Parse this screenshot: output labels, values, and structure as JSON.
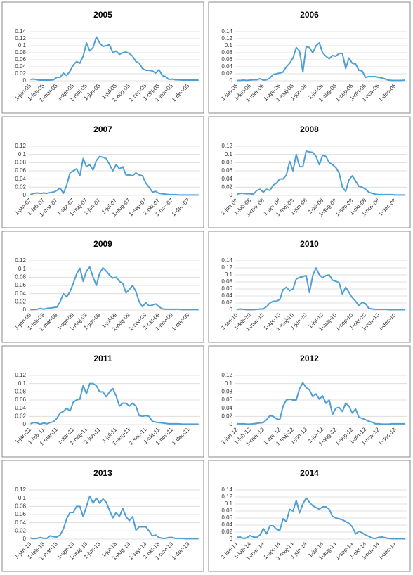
{
  "chart_data": [
    {
      "type": "line",
      "title": "2005",
      "color": "#4f9fd5",
      "ylim": [
        0,
        0.14
      ],
      "yticks": [
        0,
        0.02,
        0.04,
        0.06,
        0.08,
        0.1,
        0.12,
        0.14
      ],
      "grid": true,
      "categories": [
        "1-jan-05",
        null,
        null,
        null,
        "1-feb-05",
        null,
        null,
        null,
        "1-mar-05",
        null,
        null,
        null,
        null,
        "1-apr-05",
        null,
        null,
        null,
        "1-maj-05",
        null,
        null,
        null,
        "1-jun-05",
        null,
        null,
        null,
        null,
        "1-jul-05",
        null,
        null,
        null,
        "1-aug-05",
        null,
        null,
        null,
        null,
        "1-sep-05",
        null,
        null,
        null,
        "1-okt-05",
        null,
        null,
        null,
        "1-nov-05",
        null,
        null,
        null,
        null,
        "1-dec-05",
        null,
        null,
        null
      ],
      "values": [
        0.004,
        0.005,
        0.003,
        0.002,
        0.002,
        0.002,
        0.002,
        0.003,
        0.01,
        0.01,
        0.022,
        0.015,
        0.028,
        0.045,
        0.055,
        0.05,
        0.07,
        0.108,
        0.085,
        0.095,
        0.125,
        0.108,
        0.098,
        0.1,
        0.103,
        0.08,
        0.085,
        0.075,
        0.08,
        0.082,
        0.078,
        0.07,
        0.055,
        0.05,
        0.035,
        0.03,
        0.03,
        0.028,
        0.022,
        0.032,
        0.015,
        0.012,
        0.004,
        0.005,
        0.003,
        0.003,
        0.002,
        0.002,
        0.002,
        0.002,
        0.002,
        0.002
      ]
    },
    {
      "type": "line",
      "title": "2006",
      "color": "#4f9fd5",
      "ylim": [
        0,
        0.14
      ],
      "yticks": [
        0,
        0.02,
        0.04,
        0.06,
        0.08,
        0.1,
        0.12,
        0.14
      ],
      "grid": true,
      "categories": [
        "1-jan-06",
        null,
        null,
        null,
        "1-feb-06",
        null,
        null,
        null,
        "1-mar-06",
        null,
        null,
        null,
        null,
        "1-apr-06",
        null,
        null,
        null,
        "1-maj-06",
        null,
        null,
        null,
        "1-jun-06",
        null,
        null,
        null,
        null,
        "1-jul-06",
        null,
        null,
        null,
        "1-aug-06",
        null,
        null,
        null,
        null,
        "1-sep-06",
        null,
        null,
        null,
        "1-okt-06",
        null,
        null,
        null,
        "1-nov-06",
        null,
        null,
        null,
        null,
        "1-dec-06",
        null,
        null,
        null
      ],
      "values": [
        0.001,
        0.001,
        0.002,
        0.001,
        0.002,
        0.003,
        0.003,
        0.006,
        0.002,
        0.003,
        0.008,
        0.018,
        0.02,
        0.022,
        0.025,
        0.04,
        0.05,
        0.065,
        0.095,
        0.085,
        0.025,
        0.097,
        0.095,
        0.08,
        0.1,
        0.108,
        0.08,
        0.07,
        0.063,
        0.072,
        0.07,
        0.078,
        0.078,
        0.035,
        0.065,
        0.05,
        0.048,
        0.03,
        0.028,
        0.01,
        0.012,
        0.012,
        0.012,
        0.01,
        0.008,
        0.005,
        0.002,
        0.001,
        0.001,
        0.001,
        0.001,
        0.002
      ]
    },
    {
      "type": "line",
      "title": "2007",
      "color": "#4f9fd5",
      "ylim": [
        0,
        0.12
      ],
      "yticks": [
        0,
        0.02,
        0.04,
        0.06,
        0.08,
        0.1,
        0.12
      ],
      "grid": true,
      "categories": [
        "1-jan-07",
        null,
        null,
        null,
        "1-feb-07",
        null,
        null,
        null,
        "1-mar-07",
        null,
        null,
        null,
        null,
        "1-apr-07",
        null,
        null,
        null,
        "1-maj-07",
        null,
        null,
        null,
        "1-jun-07",
        null,
        null,
        null,
        null,
        "1-jul-07",
        null,
        null,
        null,
        "1-aug-07",
        null,
        null,
        null,
        null,
        "1-sep-07",
        null,
        null,
        null,
        "1-okt-07",
        null,
        null,
        null,
        "1-nov-07",
        null,
        null,
        null,
        null,
        "1-dec-07",
        null,
        null,
        null
      ],
      "values": [
        0.002,
        0.005,
        0.006,
        0.005,
        0.006,
        0.005,
        0.007,
        0.008,
        0.012,
        0.018,
        0.005,
        0.025,
        0.055,
        0.06,
        0.065,
        0.048,
        0.09,
        0.07,
        0.075,
        0.062,
        0.085,
        0.095,
        0.093,
        0.09,
        0.075,
        0.06,
        0.075,
        0.065,
        0.07,
        0.05,
        0.05,
        0.048,
        0.055,
        0.05,
        0.048,
        0.03,
        0.02,
        0.008,
        0.01,
        0.005,
        0.004,
        0.003,
        0.002,
        0.002,
        0.002,
        0.001,
        0.001,
        0.001,
        0.001,
        0.001,
        0.001,
        0.001
      ]
    },
    {
      "type": "line",
      "title": "2008",
      "color": "#4f9fd5",
      "ylim": [
        0,
        0.12
      ],
      "yticks": [
        0,
        0.02,
        0.04,
        0.06,
        0.08,
        0.1,
        0.12
      ],
      "grid": true,
      "categories": [
        "1-jan-08",
        null,
        null,
        null,
        "1-feb-08",
        null,
        null,
        null,
        "1-mar-08",
        null,
        null,
        null,
        null,
        "1-apr-08",
        null,
        null,
        null,
        "1-maj-08",
        null,
        null,
        null,
        "1-jun-08",
        null,
        null,
        null,
        null,
        "1-jul-08",
        null,
        null,
        null,
        "1-aug-08",
        null,
        null,
        null,
        null,
        "1-sep-08",
        null,
        null,
        null,
        "1-okt-08",
        null,
        null,
        null,
        "1-nov-08",
        null,
        null,
        null,
        null,
        "1-dec-08",
        null,
        null,
        null
      ],
      "values": [
        0.003,
        0.005,
        0.005,
        0.004,
        0.004,
        0.003,
        0.012,
        0.015,
        0.008,
        0.015,
        0.012,
        0.025,
        0.03,
        0.04,
        0.04,
        0.05,
        0.083,
        0.06,
        0.1,
        0.07,
        0.07,
        0.108,
        0.106,
        0.105,
        0.095,
        0.075,
        0.098,
        0.095,
        0.08,
        0.075,
        0.068,
        0.055,
        0.02,
        0.01,
        0.038,
        0.048,
        0.035,
        0.022,
        0.02,
        0.015,
        0.008,
        0.005,
        0.003,
        0.002,
        0.002,
        0.002,
        0.002,
        0.002,
        0.001,
        0.001,
        0.001,
        0.001
      ]
    },
    {
      "type": "line",
      "title": "2009",
      "color": "#4f9fd5",
      "ylim": [
        0,
        0.12
      ],
      "yticks": [
        0,
        0.02,
        0.04,
        0.06,
        0.08,
        0.1,
        0.12
      ],
      "grid": true,
      "categories": [
        "1-jan-09",
        null,
        null,
        null,
        "1-feb-09",
        null,
        null,
        null,
        "1-mar-09",
        null,
        null,
        null,
        null,
        "1-apr-09",
        null,
        null,
        null,
        "1-maj-09",
        null,
        null,
        null,
        "1-jun-09",
        null,
        null,
        null,
        null,
        "1-jul-09",
        null,
        null,
        null,
        "1-aug-09",
        null,
        null,
        null,
        null,
        "1-sep-09",
        null,
        null,
        null,
        "1-okt-09",
        null,
        null,
        null,
        "1-nov-09",
        null,
        null,
        null,
        null,
        "1-dec-09",
        null,
        null,
        null
      ],
      "values": [
        0.001,
        0.001,
        0.002,
        0.004,
        0.002,
        0.004,
        0.005,
        0.006,
        0.007,
        0.02,
        0.04,
        0.032,
        0.045,
        0.065,
        0.088,
        0.102,
        0.07,
        0.095,
        0.105,
        0.08,
        0.06,
        0.09,
        0.103,
        0.095,
        0.085,
        0.078,
        0.08,
        0.07,
        0.065,
        0.042,
        0.05,
        0.06,
        0.045,
        0.02,
        0.008,
        0.018,
        0.01,
        0.012,
        0.015,
        0.008,
        0.003,
        0.002,
        0.002,
        0.002,
        0.002,
        0.002,
        0.001,
        0.001,
        0.001,
        0.001,
        0.001,
        0.001
      ]
    },
    {
      "type": "line",
      "title": "2010",
      "color": "#4f9fd5",
      "ylim": [
        0,
        0.14
      ],
      "yticks": [
        0,
        0.02,
        0.04,
        0.06,
        0.08,
        0.1,
        0.12,
        0.14
      ],
      "grid": true,
      "categories": [
        "1-jan-10",
        null,
        null,
        null,
        "1-feb-10",
        null,
        null,
        null,
        "1-mar-10",
        null,
        null,
        null,
        null,
        "1-apr-10",
        null,
        null,
        null,
        "1-maj-10",
        null,
        null,
        null,
        "1-jun-10",
        null,
        null,
        null,
        null,
        "1-jul-10",
        null,
        null,
        null,
        "1-aug-10",
        null,
        null,
        null,
        null,
        "1-sep-10",
        null,
        null,
        null,
        "1-okt-10",
        null,
        null,
        null,
        "1-nov-10",
        null,
        null,
        null,
        null,
        "1-dec-10",
        null,
        null,
        null
      ],
      "values": [
        0.002,
        0.003,
        0.002,
        0.001,
        0.001,
        0.001,
        0.002,
        0.003,
        0.003,
        0.01,
        0.02,
        0.025,
        0.025,
        0.03,
        0.058,
        0.065,
        0.055,
        0.06,
        0.088,
        0.093,
        0.095,
        0.098,
        0.05,
        0.098,
        0.12,
        0.1,
        0.092,
        0.098,
        0.1,
        0.085,
        0.082,
        0.078,
        0.045,
        0.065,
        0.05,
        0.035,
        0.025,
        0.012,
        0.022,
        0.018,
        0.005,
        0.003,
        0.002,
        0.002,
        0.002,
        0.002,
        0.001,
        0.001,
        0.001,
        0.001,
        0.001,
        0.001
      ]
    },
    {
      "type": "line",
      "title": "2011",
      "color": "#4f9fd5",
      "ylim": [
        0,
        0.12
      ],
      "yticks": [
        0,
        0.02,
        0.04,
        0.06,
        0.08,
        0.1,
        0.12
      ],
      "grid": true,
      "categories": [
        "1-jan-11",
        null,
        null,
        null,
        "1-feb-11",
        null,
        null,
        null,
        "1-mar-11",
        null,
        null,
        null,
        null,
        "1-apr-11",
        null,
        null,
        null,
        "1-maj-11",
        null,
        null,
        null,
        "1-jun-11",
        null,
        null,
        null,
        null,
        "1-jul-11",
        null,
        null,
        null,
        "1-aug-11",
        null,
        null,
        null,
        null,
        "1-sep-11",
        null,
        null,
        null,
        "1-okt-11",
        null,
        null,
        null,
        "1-nov-11",
        null,
        null,
        null,
        null,
        "1-dec-11",
        null,
        null,
        null
      ],
      "values": [
        0.002,
        0.005,
        0.004,
        0.001,
        0.004,
        0.002,
        0.005,
        0.007,
        0.015,
        0.028,
        0.032,
        0.04,
        0.033,
        0.055,
        0.06,
        0.062,
        0.095,
        0.075,
        0.1,
        0.1,
        0.095,
        0.08,
        0.08,
        0.068,
        0.08,
        0.088,
        0.07,
        0.045,
        0.052,
        0.052,
        0.045,
        0.052,
        0.045,
        0.022,
        0.02,
        0.022,
        0.02,
        0.008,
        0.006,
        0.005,
        0.004,
        0.003,
        0.002,
        0.002,
        0.002,
        0.002,
        0.001,
        0.001,
        0.001,
        0.001,
        0.001,
        0.001
      ]
    },
    {
      "type": "line",
      "title": "2012",
      "color": "#4f9fd5",
      "ylim": [
        0,
        0.12
      ],
      "yticks": [
        0,
        0.02,
        0.04,
        0.06,
        0.08,
        0.1,
        0.12
      ],
      "grid": true,
      "categories": [
        "1-jan-12",
        null,
        null,
        null,
        "1-feb-12",
        null,
        null,
        null,
        "1-mar-12",
        null,
        null,
        null,
        null,
        "1-apr-12",
        null,
        null,
        null,
        "1-maj-12",
        null,
        null,
        null,
        "1-jun-12",
        null,
        null,
        null,
        null,
        "1-jul-12",
        null,
        null,
        null,
        "1-aug-12",
        null,
        null,
        null,
        null,
        "1-sep-12",
        null,
        null,
        null,
        "1-okt-12",
        null,
        null,
        null,
        "1-nov-12",
        null,
        null,
        null,
        null,
        "1-dec-12",
        null,
        null,
        null
      ],
      "values": [
        0.002,
        0.002,
        0.002,
        0.001,
        0.001,
        0.002,
        0.003,
        0.004,
        0.005,
        0.012,
        0.022,
        0.02,
        0.014,
        0.012,
        0.045,
        0.06,
        0.062,
        0.06,
        0.06,
        0.088,
        0.102,
        0.09,
        0.085,
        0.068,
        0.075,
        0.062,
        0.07,
        0.052,
        0.06,
        0.025,
        0.04,
        0.042,
        0.032,
        0.052,
        0.045,
        0.028,
        0.038,
        0.018,
        0.015,
        0.012,
        0.008,
        0.006,
        0.002,
        0.002,
        0.001,
        0.001,
        0.001,
        0.002,
        0.002,
        0.002,
        0.002,
        0.002
      ]
    },
    {
      "type": "line",
      "title": "2013",
      "color": "#4f9fd5",
      "ylim": [
        0,
        0.12
      ],
      "yticks": [
        0,
        0.02,
        0.04,
        0.06,
        0.08,
        0.1,
        0.12
      ],
      "grid": true,
      "categories": [
        "1-jan-13",
        null,
        null,
        null,
        "1-feb-13",
        null,
        null,
        null,
        "1-mar-13",
        null,
        null,
        null,
        null,
        "1-apr-13",
        null,
        null,
        null,
        "1-maj-13",
        null,
        null,
        null,
        "1-jun-13",
        null,
        null,
        null,
        null,
        "1-jul-13",
        null,
        null,
        null,
        "1-aug-13",
        null,
        null,
        null,
        null,
        "1-sep-13",
        null,
        null,
        null,
        "1-okt-13",
        null,
        null,
        null,
        "1-nov-13",
        null,
        null,
        null,
        null,
        "1-dec-13",
        null,
        null,
        null
      ],
      "values": [
        0.003,
        0.001,
        0.002,
        0.004,
        0.002,
        0.002,
        0.008,
        0.006,
        0.005,
        0.01,
        0.025,
        0.05,
        0.065,
        0.065,
        0.08,
        0.08,
        0.055,
        0.08,
        0.105,
        0.088,
        0.1,
        0.088,
        0.098,
        0.09,
        0.07,
        0.052,
        0.065,
        0.055,
        0.075,
        0.055,
        0.045,
        0.055,
        0.022,
        0.03,
        0.03,
        0.03,
        0.02,
        0.008,
        0.01,
        0.004,
        0.002,
        0.002,
        0.004,
        0.004,
        0.002,
        0.002,
        0.002,
        0.001,
        0.001,
        0.001,
        0.001,
        0.001
      ]
    },
    {
      "type": "line",
      "title": "2014",
      "color": "#4f9fd5",
      "ylim": [
        0,
        0.14
      ],
      "yticks": [
        0,
        0.02,
        0.04,
        0.06,
        0.08,
        0.1,
        0.12,
        0.14
      ],
      "grid": true,
      "categories": [
        "1-jan-14",
        null,
        null,
        null,
        "1-feb-14",
        null,
        null,
        null,
        "1-mar-14",
        null,
        null,
        null,
        null,
        "1-apr-14",
        null,
        null,
        null,
        "1-maj-14",
        null,
        null,
        null,
        "1-jun-14",
        null,
        null,
        null,
        null,
        "1-jul-14",
        null,
        null,
        null,
        "1-aug-14",
        null,
        null,
        null,
        null,
        "1-sep-14",
        null,
        null,
        null,
        "1-okt-14",
        null,
        null,
        null,
        "1-nov-14",
        null,
        null,
        null,
        null,
        "1-dec-14",
        null,
        null,
        null
      ],
      "values": [
        0.005,
        0.006,
        0.002,
        0.004,
        0.01,
        0.006,
        0.005,
        0.012,
        0.03,
        0.015,
        0.038,
        0.038,
        0.028,
        0.025,
        0.058,
        0.05,
        0.085,
        0.08,
        0.11,
        0.075,
        0.1,
        0.117,
        0.105,
        0.095,
        0.09,
        0.085,
        0.092,
        0.092,
        0.085,
        0.065,
        0.06,
        0.058,
        0.055,
        0.05,
        0.045,
        0.035,
        0.015,
        0.022,
        0.018,
        0.012,
        0.008,
        0.003,
        0.002,
        0.005,
        0.006,
        0.004,
        0.002,
        0.001,
        0.001,
        0.001,
        0.001,
        0.001
      ]
    }
  ]
}
